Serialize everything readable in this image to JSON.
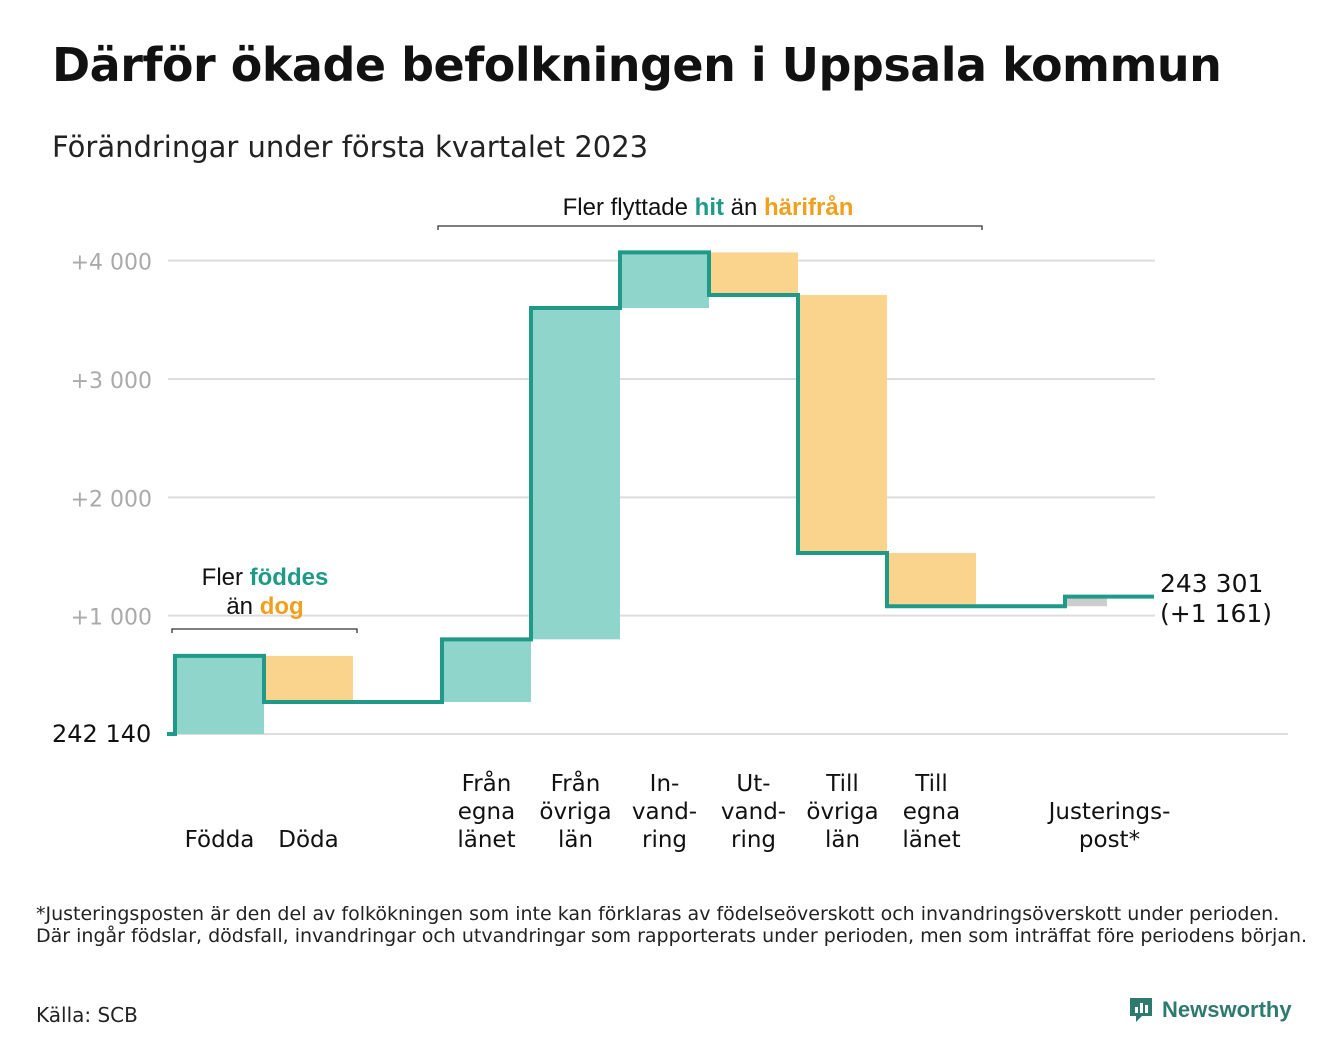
{
  "title": "Därför ökade befolkningen i Uppsala kommun",
  "subtitle": "Förändringar under första kvartalet 2023",
  "colors": {
    "increase": "#8fd5cb",
    "decrease": "#fad48c",
    "adjustment": "#cccccc",
    "line": "#1f9a88",
    "highlight_green": "#1e9a87",
    "highlight_orange": "#f0a01e",
    "grid": "#dddddd",
    "tick_text": "#aaaaaa"
  },
  "annotations": {
    "births": {
      "prefix": "Fler ",
      "green": "föddes",
      "line2_prefix": "än ",
      "orange": "dog"
    },
    "migration": {
      "prefix": "Fler flyttade ",
      "green": "hit",
      "middle": " än ",
      "orange": "härifrån"
    }
  },
  "footnote": "*Justeringsposten är den del av folkökningen som inte kan förklaras av födelseöverskott och invandringsöverskott under perioden. Där ingår födslar, dödsfall, invandringar och utvandringar som rapporterats under perioden, men som inträffat före periodens början.",
  "source": "Källa: SCB",
  "brand": "Newsworthy",
  "brand_icon": "newsworthy-logo-icon",
  "chart_data": {
    "type": "waterfall",
    "start_label": "242 140",
    "end_label_1": "243 301",
    "end_label_2": "(+1 161)",
    "yticks": [
      {
        "value": 1000,
        "label": "+1 000"
      },
      {
        "value": 2000,
        "label": "+2 000"
      },
      {
        "value": 3000,
        "label": "+3 000"
      },
      {
        "value": 4000,
        "label": "+4 000"
      }
    ],
    "ylim": [
      0,
      4000
    ],
    "grid": true,
    "categories": [
      {
        "label": [
          "Födda"
        ],
        "from": 0,
        "to": 660,
        "kind": "increase"
      },
      {
        "label": [
          "Döda"
        ],
        "from": 660,
        "to": 270,
        "kind": "decrease"
      },
      {
        "label": [],
        "from": 270,
        "to": 270,
        "kind": "none"
      },
      {
        "label": [
          "Från",
          "egna",
          "länet"
        ],
        "from": 270,
        "to": 800,
        "kind": "increase"
      },
      {
        "label": [
          "Från",
          "övriga",
          "län"
        ],
        "from": 800,
        "to": 3600,
        "kind": "increase"
      },
      {
        "label": [
          "In-",
          "vand-",
          "ring"
        ],
        "from": 3600,
        "to": 4070,
        "kind": "increase"
      },
      {
        "label": [
          "Ut-",
          "vand-",
          "ring"
        ],
        "from": 4070,
        "to": 3710,
        "kind": "decrease"
      },
      {
        "label": [
          "Till",
          "övriga",
          "län"
        ],
        "from": 3710,
        "to": 1530,
        "kind": "decrease"
      },
      {
        "label": [
          "Till",
          "egna",
          "länet"
        ],
        "from": 1530,
        "to": 1080,
        "kind": "decrease"
      },
      {
        "label": [],
        "from": 1080,
        "to": 1080,
        "kind": "none"
      },
      {
        "label": [
          "Justerings-",
          "post*"
        ],
        "from": 1080,
        "to": 1161,
        "kind": "adjustment"
      }
    ]
  }
}
